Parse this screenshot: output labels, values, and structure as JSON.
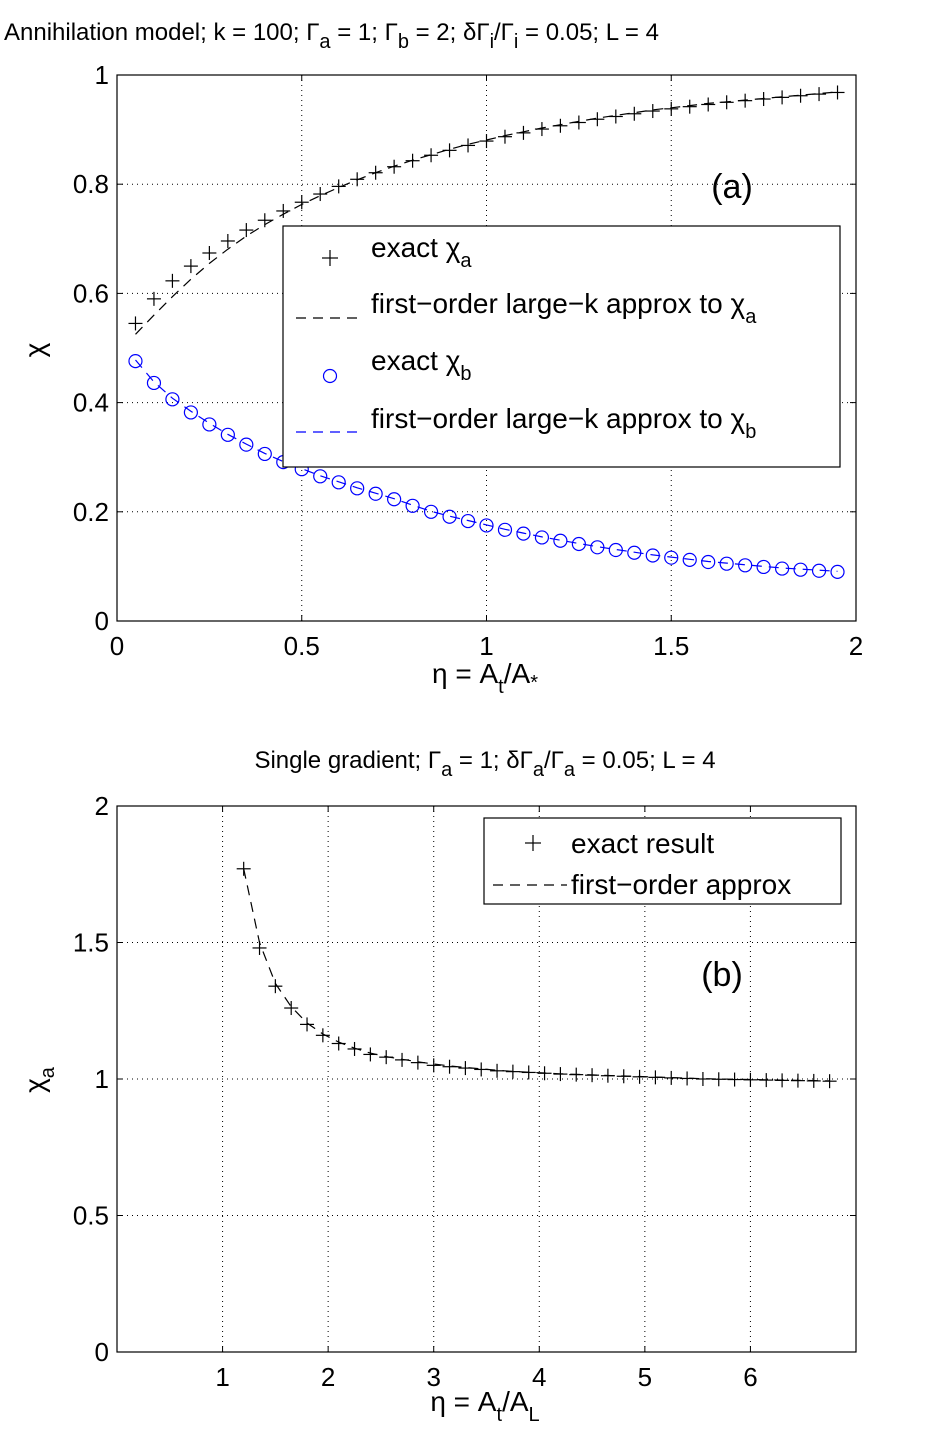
{
  "chart_data": [
    {
      "type": "scatter",
      "panel_label": "(a)",
      "title": "Annihilation model; k = 100; Γ_a = 1; Γ_b = 2; δΓ_i/Γ_i = 0.05; L = 4",
      "title_parts": {
        "t1": "Annihilation model; k = 100; Γ",
        "s1": "a",
        "t2": " = 1; Γ",
        "s2": "b",
        "t3": " = 2; δΓ",
        "s3": "i",
        "t4": "/Γ",
        "s4": "i",
        "t5": " = 0.05; L = 4"
      },
      "xlabel": "η = A_t/A_*",
      "xlabel_parts": {
        "t1": "η = A",
        "s1": "t",
        "t2": "/A",
        "s2": "*"
      },
      "ylabel": "χ",
      "xlim": [
        0,
        2
      ],
      "ylim": [
        0,
        1
      ],
      "xticks": [
        "0",
        "0.5",
        "1",
        "1.5",
        "2"
      ],
      "yticks": [
        "0",
        "0.2",
        "0.4",
        "0.6",
        "0.8",
        "1"
      ],
      "grid": true,
      "legend_position": "center-right",
      "legend": {
        "l1": "exact χ",
        "l1s": "a",
        "l2": "first−order large−k approx to χ",
        "l2s": "a",
        "l3": "exact χ",
        "l3s": "b",
        "l4": "first−order large−k approx to χ",
        "l4s": "b"
      },
      "x": [
        0.05,
        0.1,
        0.15,
        0.2,
        0.25,
        0.3,
        0.35,
        0.4,
        0.45,
        0.5,
        0.55,
        0.6,
        0.65,
        0.7,
        0.75,
        0.8,
        0.85,
        0.9,
        0.95,
        1.0,
        1.05,
        1.1,
        1.15,
        1.2,
        1.25,
        1.3,
        1.35,
        1.4,
        1.45,
        1.5,
        1.55,
        1.6,
        1.65,
        1.7,
        1.75,
        1.8,
        1.85,
        1.9,
        1.95
      ],
      "series": [
        {
          "name": "exact χa",
          "marker": "plus",
          "color": "#000000",
          "values": [
            0.545,
            0.59,
            0.623,
            0.65,
            0.674,
            0.696,
            0.716,
            0.734,
            0.751,
            0.767,
            0.782,
            0.796,
            0.809,
            0.821,
            0.832,
            0.843,
            0.853,
            0.862,
            0.871,
            0.879,
            0.887,
            0.894,
            0.901,
            0.907,
            0.913,
            0.919,
            0.924,
            0.929,
            0.934,
            0.938,
            0.942,
            0.946,
            0.95,
            0.953,
            0.956,
            0.959,
            0.962,
            0.965,
            0.968
          ]
        },
        {
          "name": "first-order large-k approx to χa",
          "style": "dashed",
          "color": "#000000",
          "values": [
            0.525,
            0.56,
            0.594,
            0.626,
            0.655,
            0.681,
            0.705,
            0.726,
            0.745,
            0.763,
            0.779,
            0.794,
            0.808,
            0.821,
            0.833,
            0.844,
            0.854,
            0.864,
            0.873,
            0.881,
            0.889,
            0.896,
            0.903,
            0.909,
            0.915,
            0.921,
            0.926,
            0.931,
            0.936,
            0.94,
            0.944,
            0.948,
            0.951,
            0.954,
            0.957,
            0.96,
            0.963,
            0.966,
            0.969
          ]
        },
        {
          "name": "exact χb",
          "marker": "circle",
          "color": "#0000ff",
          "values": [
            0.476,
            0.436,
            0.406,
            0.382,
            0.36,
            0.341,
            0.323,
            0.306,
            0.291,
            0.278,
            0.265,
            0.254,
            0.243,
            0.233,
            0.223,
            0.211,
            0.2,
            0.191,
            0.183,
            0.175,
            0.167,
            0.16,
            0.153,
            0.147,
            0.141,
            0.135,
            0.13,
            0.125,
            0.12,
            0.116,
            0.112,
            0.108,
            0.105,
            0.102,
            0.099,
            0.096,
            0.094,
            0.092,
            0.09
          ]
        },
        {
          "name": "first-order large-k approx to χb",
          "style": "dashed",
          "color": "#0000ff",
          "values": [
            0.478,
            0.438,
            0.408,
            0.384,
            0.362,
            0.342,
            0.324,
            0.307,
            0.292,
            0.279,
            0.266,
            0.255,
            0.244,
            0.234,
            0.224,
            0.212,
            0.201,
            0.192,
            0.184,
            0.176,
            0.168,
            0.161,
            0.154,
            0.148,
            0.142,
            0.136,
            0.131,
            0.126,
            0.121,
            0.117,
            0.113,
            0.109,
            0.106,
            0.103,
            0.1,
            0.097,
            0.095,
            0.093,
            0.091
          ]
        }
      ]
    },
    {
      "type": "scatter",
      "panel_label": "(b)",
      "title": "Single gradient; Γ_a = 1; δΓ_a/Γ_a = 0.05; L = 4",
      "title_parts": {
        "t1": "Single gradient; Γ",
        "s1": "a",
        "t2": " = 1; δΓ",
        "s2": "a",
        "t3": "/Γ",
        "s3": "a",
        "t4": " = 0.05; L = 4"
      },
      "xlabel": "η = A_t/A_L",
      "xlabel_parts": {
        "t1": "η = A",
        "s1": "t",
        "t2": "/A",
        "s2": "L"
      },
      "ylabel": "χ_a",
      "ylabel_parts": {
        "t1": "χ",
        "s1": "a"
      },
      "xlim": [
        0,
        7
      ],
      "ylim": [
        0,
        2
      ],
      "xticks": [
        "1",
        "2",
        "3",
        "4",
        "5",
        "6"
      ],
      "yticks": [
        "0",
        "0.5",
        "1",
        "1.5",
        "2"
      ],
      "grid": true,
      "legend_position": "top-right",
      "legend": {
        "l1": "exact result",
        "l2": "first−order approx"
      },
      "x": [
        1.2,
        1.35,
        1.5,
        1.65,
        1.8,
        1.95,
        2.1,
        2.25,
        2.4,
        2.55,
        2.7,
        2.85,
        3.0,
        3.15,
        3.3,
        3.45,
        3.6,
        3.75,
        3.9,
        4.05,
        4.2,
        4.35,
        4.5,
        4.65,
        4.8,
        4.95,
        5.1,
        5.25,
        5.4,
        5.55,
        5.7,
        5.85,
        6.0,
        6.15,
        6.3,
        6.45,
        6.6,
        6.75
      ],
      "series": [
        {
          "name": "exact result",
          "marker": "plus",
          "color": "#000000",
          "values": [
            1.77,
            1.48,
            1.34,
            1.26,
            1.2,
            1.16,
            1.13,
            1.11,
            1.09,
            1.08,
            1.07,
            1.06,
            1.05,
            1.045,
            1.04,
            1.035,
            1.03,
            1.027,
            1.024,
            1.021,
            1.018,
            1.016,
            1.014,
            1.012,
            1.01,
            1.008,
            1.006,
            1.004,
            1.002,
            1.0,
            0.999,
            0.998,
            0.997,
            0.996,
            0.995,
            0.994,
            0.993,
            0.992
          ]
        },
        {
          "name": "first-order approx",
          "style": "dashed",
          "color": "#000000",
          "values": [
            1.77,
            1.5,
            1.35,
            1.265,
            1.205,
            1.165,
            1.135,
            1.113,
            1.095,
            1.082,
            1.072,
            1.063,
            1.055,
            1.048,
            1.042,
            1.037,
            1.032,
            1.028,
            1.025,
            1.022,
            1.019,
            1.017,
            1.015,
            1.013,
            1.011,
            1.009,
            1.007,
            1.005,
            1.003,
            1.001,
            1.0,
            0.999,
            0.998,
            0.997,
            0.996,
            0.995,
            0.994,
            0.993
          ]
        }
      ]
    }
  ]
}
